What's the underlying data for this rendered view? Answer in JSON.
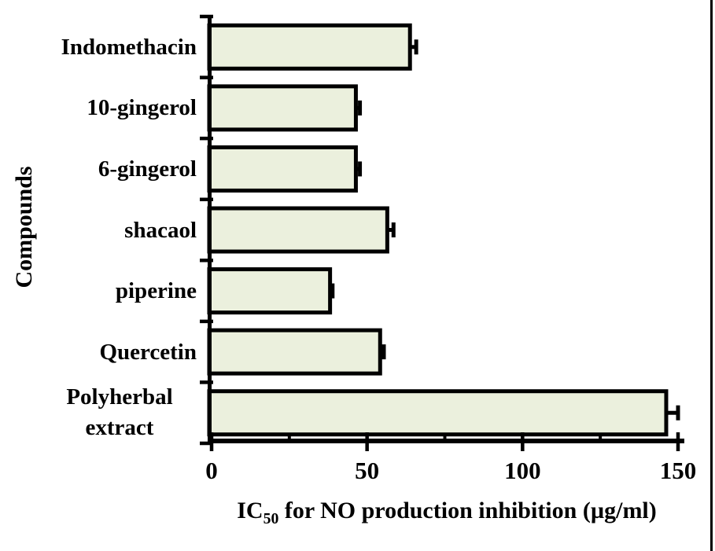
{
  "figure": {
    "background_color": "#FFFFFF",
    "right_border_color": "#000000"
  },
  "chart_data": {
    "type": "bar",
    "orientation": "horizontal",
    "title": "",
    "xlabel": "IC50 for NO production inhibition (µg/ml)",
    "xlabel_prefix": "IC",
    "xlabel_subscript": "50",
    "xlabel_suffix": " for NO production inhibition (µg/ml)",
    "ylabel": "Compounds",
    "categories": [
      "Indomethacin",
      "10-gingerol",
      "6-gingerol",
      "shacaol",
      "piperine",
      "Quercetin",
      "Polyherbal extract"
    ],
    "values": [
      63.8,
      46.4,
      46.4,
      56.5,
      38.1,
      54.2,
      146.2
    ],
    "errors": [
      2,
      1.3,
      1.3,
      2,
      0.8,
      1.2,
      3.8
    ],
    "error_bar_style": "right-cap",
    "xlim": [
      0,
      150
    ],
    "x_major_ticks": [
      0,
      50,
      100,
      150
    ],
    "x_minor_ticks": [
      25,
      75,
      125
    ],
    "grid": false,
    "legend": false,
    "bar_fill_color": "#EBF0DD",
    "bar_border_color": "#000000",
    "axis_color": "#000000"
  }
}
